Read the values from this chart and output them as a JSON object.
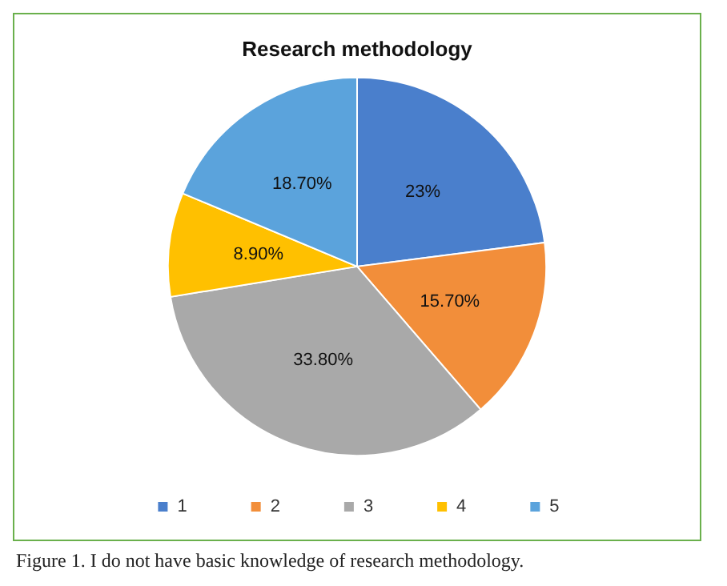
{
  "chart_data": {
    "type": "pie",
    "title": "Research methodology",
    "categories": [
      "1",
      "2",
      "3",
      "4",
      "5"
    ],
    "values": [
      23,
      15.7,
      33.8,
      8.9,
      18.7
    ],
    "value_labels": [
      "23%",
      "15.70%",
      "33.80%",
      "8.90%",
      "18.70%"
    ],
    "colors": [
      "#4a7fcc",
      "#f28e3a",
      "#a9a9a9",
      "#ffc000",
      "#5ba3dc"
    ],
    "legend": "bottom",
    "annotations": [
      "Figure 1. I do not have basic knowledge of research methodology."
    ]
  }
}
